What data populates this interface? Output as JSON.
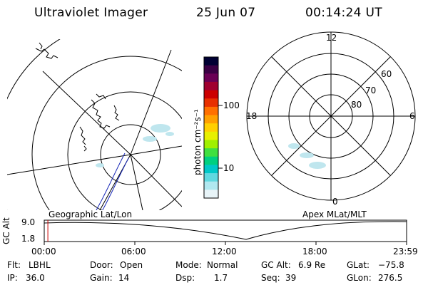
{
  "header": {
    "instrument": "Ultraviolet Imager",
    "date": "25 Jun 07",
    "time": "00:14:24 UT"
  },
  "left_panel": {
    "caption": "Geographic Lat/Lon"
  },
  "right_panel": {
    "caption": "Apex MLat/MLT",
    "mlt_labels": {
      "top": "12",
      "left": "18",
      "right": "6",
      "bottom": "0"
    },
    "lat_labels": [
      "60",
      "70",
      "80"
    ]
  },
  "colorbar": {
    "unit_label": "photon cm⁻²s⁻¹",
    "ticks": [
      "100",
      "10"
    ],
    "colors": [
      "#000033",
      "#3a0044",
      "#6a0055",
      "#a00030",
      "#cc0000",
      "#e83000",
      "#ff7000",
      "#ffa000",
      "#ffd000",
      "#e8f000",
      "#a0f000",
      "#40e040",
      "#00d080",
      "#00c8c8",
      "#60d8e0",
      "#b0e8f0",
      "#e8f4f8"
    ]
  },
  "altitude_plot": {
    "ylabel": "GC Alt",
    "yticks": [
      "9.0",
      "1.8"
    ],
    "xticks": [
      "00:00",
      "06:00",
      "12:00",
      "18:00",
      "23:59"
    ],
    "current_time_hours": 0.24
  },
  "info": {
    "flt_label": "Flt:",
    "flt_value": "LBHL",
    "ip_label": "IP:",
    "ip_value": "36.0",
    "door_label": "Door:",
    "door_value": "Open",
    "gain_label": "Gain:",
    "gain_value": "14",
    "mode_label": "Mode:",
    "mode_value": "Normal",
    "dsp_label": "Dsp:",
    "dsp_value": "1.7",
    "gcalt_label": "GC Alt:",
    "gcalt_value": "6.9 Re",
    "seq_label": "Seq:",
    "seq_value": "39",
    "glat_label": "GLat:",
    "glat_value": "−75.8",
    "glon_label": "GLon:",
    "glon_value": "276.5"
  }
}
